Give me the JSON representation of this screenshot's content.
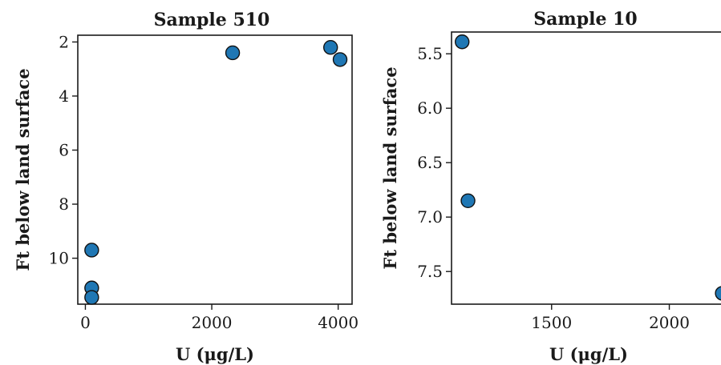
{
  "chart_data": [
    {
      "type": "scatter",
      "title": "Sample 510",
      "xlabel": "U (μg/L)",
      "ylabel": "Ft below land surface",
      "x_ticks": [
        0,
        2000,
        4000
      ],
      "x_tick_labels": [
        "0",
        "2000",
        "4000"
      ],
      "y_ticks": [
        2,
        4,
        6,
        8,
        10
      ],
      "y_tick_labels": [
        "2",
        "4",
        "6",
        "8",
        "10"
      ],
      "y_inverted": true,
      "xlim": [
        -120,
        4220
      ],
      "ylim": [
        1.75,
        11.7
      ],
      "grid": false,
      "marker_color": "#1f77b4",
      "points": [
        {
          "x": 100,
          "y": 9.7
        },
        {
          "x": 100,
          "y": 11.1
        },
        {
          "x": 100,
          "y": 11.45
        },
        {
          "x": 2330,
          "y": 2.4
        },
        {
          "x": 3880,
          "y": 2.2
        },
        {
          "x": 4030,
          "y": 2.65
        }
      ]
    },
    {
      "type": "scatter",
      "title": "Sample 10",
      "xlabel": "U (μg/L)",
      "ylabel": "Ft below land surface",
      "x_ticks": [
        1500,
        2000
      ],
      "x_tick_labels": [
        "1500",
        "2000"
      ],
      "y_ticks": [
        5.5,
        6.0,
        6.5,
        7.0,
        7.5
      ],
      "y_tick_labels": [
        "5.5",
        "6.0",
        "6.5",
        "7.0",
        "7.5"
      ],
      "y_inverted": true,
      "xlim": [
        1075,
        2240
      ],
      "ylim": [
        5.3,
        7.8
      ],
      "grid": false,
      "marker_color": "#1f77b4",
      "points": [
        {
          "x": 1120,
          "y": 5.39
        },
        {
          "x": 1145,
          "y": 6.85
        },
        {
          "x": 2225,
          "y": 7.7
        }
      ]
    }
  ]
}
